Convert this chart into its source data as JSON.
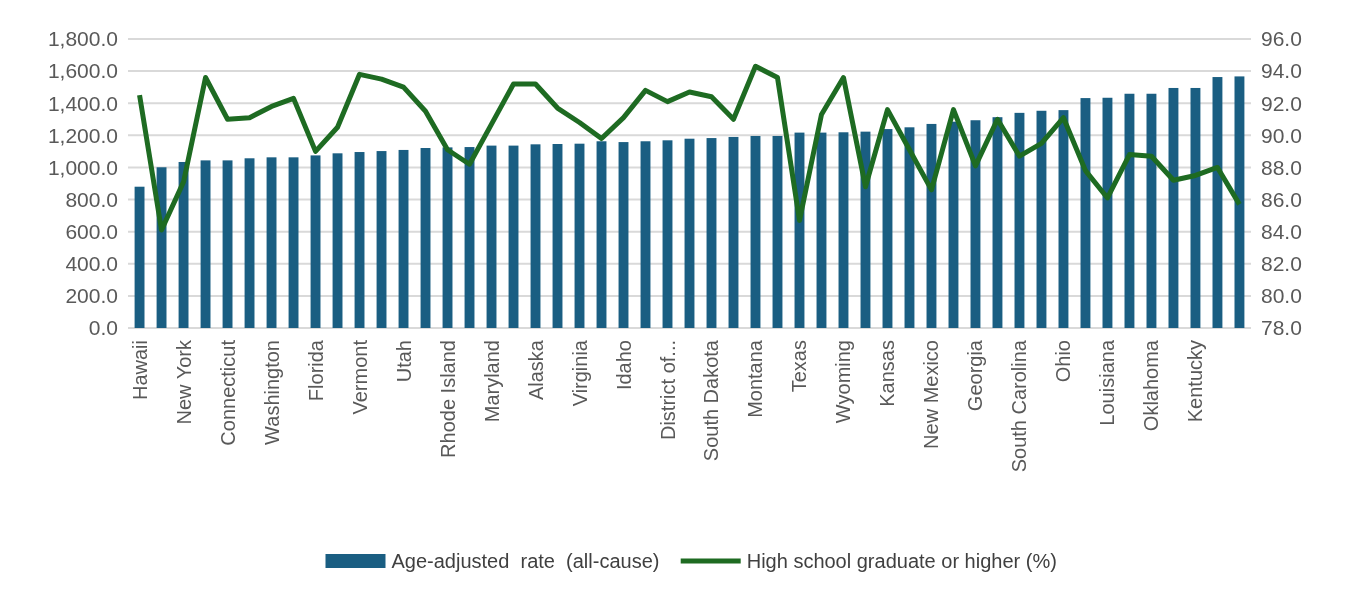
{
  "chart_data": {
    "type": "bar",
    "categories": [
      "Hawaii",
      null,
      "New York",
      null,
      "Connecticut",
      null,
      "Washington",
      null,
      "Florida",
      null,
      "Vermont",
      null,
      "Utah",
      null,
      "Rhode Island",
      null,
      "Maryland",
      null,
      "Alaska",
      null,
      "Virginia",
      null,
      "Idaho",
      null,
      "District of...",
      null,
      "South Dakota",
      null,
      "Montana",
      null,
      "Texas",
      null,
      "Wyoming",
      null,
      "Kansas",
      null,
      "New Mexico",
      null,
      "Georgia",
      null,
      "South Carolina",
      null,
      "Ohio",
      null,
      "Louisiana",
      null,
      "Oklahoma",
      null,
      "Kentucky",
      null,
      null
    ],
    "series": [
      {
        "name": "Age-adjusted  rate  (all-cause)",
        "color": "#1a5e82",
        "values": [
          880,
          1001,
          1034,
          1044,
          1044,
          1057,
          1063,
          1063,
          1075,
          1088,
          1096,
          1102,
          1109,
          1121,
          1125,
          1127,
          1136,
          1136,
          1144,
          1146,
          1148,
          1163,
          1158,
          1163,
          1169,
          1179,
          1183,
          1190,
          1196,
          1196,
          1217,
          1217,
          1219,
          1223,
          1239,
          1250,
          1271,
          1285,
          1294,
          1313,
          1340,
          1353,
          1357,
          1432,
          1434,
          1459,
          1459,
          1495,
          1495,
          1563,
          1567
        ]
      },
      {
        "name": "High school graduate or higher (%)",
        "type": "line",
        "axis": "y2",
        "color": "#1e6b22",
        "values": [
          92.5,
          84.1,
          87.1,
          93.6,
          91.0,
          91.1,
          91.8,
          92.3,
          89.0,
          90.5,
          93.8,
          93.5,
          93.0,
          91.5,
          89.1,
          88.2,
          90.7,
          93.2,
          93.2,
          91.7,
          90.8,
          89.8,
          91.1,
          92.8,
          92.1,
          92.7,
          92.4,
          91.0,
          94.3,
          93.6,
          84.7,
          91.3,
          93.6,
          86.8,
          91.6,
          89.1,
          86.6,
          91.6,
          88.1,
          91.0,
          88.7,
          89.5,
          91.1,
          87.8,
          86.1,
          88.8,
          88.7,
          87.2,
          87.5,
          88.0,
          85.7
        ]
      }
    ],
    "ylim": [
      0,
      1800
    ],
    "yticks": [
      {
        "value": 0,
        "label": "0.0"
      },
      {
        "value": 200,
        "label": "200.0"
      },
      {
        "value": 400,
        "label": "400.0"
      },
      {
        "value": 600,
        "label": "600.0"
      },
      {
        "value": 800,
        "label": "800.0"
      },
      {
        "value": 1000,
        "label": "1,000.0"
      },
      {
        "value": 1200,
        "label": "1,200.0"
      },
      {
        "value": 1400,
        "label": "1,400.0"
      },
      {
        "value": 1600,
        "label": "1,600.0"
      },
      {
        "value": 1800,
        "label": "1,800.0"
      }
    ],
    "y2lim": [
      78,
      96
    ],
    "y2ticks": [
      {
        "value": 78,
        "label": "78.0"
      },
      {
        "value": 80,
        "label": "80.0"
      },
      {
        "value": 82,
        "label": "82.0"
      },
      {
        "value": 84,
        "label": "84.0"
      },
      {
        "value": 86,
        "label": "86.0"
      },
      {
        "value": 88,
        "label": "88.0"
      },
      {
        "value": 90,
        "label": "90.0"
      },
      {
        "value": 92,
        "label": "92.0"
      },
      {
        "value": 94,
        "label": "94.0"
      },
      {
        "value": 96,
        "label": "96.0"
      }
    ],
    "grid": "y",
    "legend": "bottom"
  }
}
